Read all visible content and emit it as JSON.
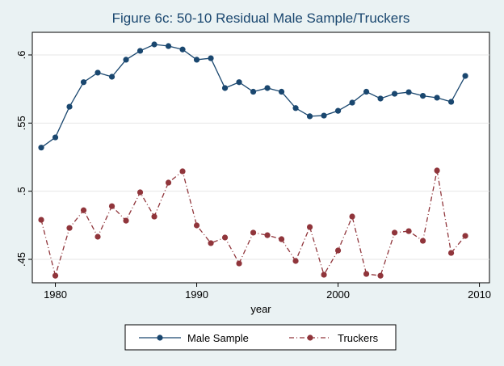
{
  "chart_data": {
    "type": "line",
    "title": "Figure 6c: 50-10 Residual Male Sample/Truckers",
    "x_label": "year",
    "x": [
      1979,
      1980,
      1981,
      1982,
      1983,
      1984,
      1985,
      1986,
      1987,
      1988,
      1989,
      1990,
      1991,
      1992,
      1993,
      1994,
      1995,
      1996,
      1997,
      1998,
      1999,
      2000,
      2001,
      2002,
      2003,
      2004,
      2005,
      2006,
      2007,
      2008,
      2009
    ],
    "series": [
      {
        "name": "Male Sample",
        "color": "#1a476f",
        "dash": "solid",
        "values": [
          0.532,
          0.5395,
          0.562,
          0.58,
          0.587,
          0.584,
          0.5965,
          0.603,
          0.6077,
          0.6065,
          0.604,
          0.5965,
          0.5976,
          0.5757,
          0.58,
          0.573,
          0.5757,
          0.573,
          0.561,
          0.555,
          0.5555,
          0.559,
          0.565,
          0.573,
          0.568,
          0.5715,
          0.5727,
          0.57,
          0.5686,
          0.5656,
          0.5846
        ]
      },
      {
        "name": "Truckers",
        "color": "#90353b",
        "dash": "dashdot",
        "values": [
          0.479,
          0.438,
          0.473,
          0.486,
          0.4666,
          0.489,
          0.4784,
          0.4992,
          0.4814,
          0.5063,
          0.5146,
          0.4749,
          0.4619,
          0.466,
          0.447,
          0.4696,
          0.4677,
          0.4648,
          0.4488,
          0.4737,
          0.4387,
          0.4565,
          0.4814,
          0.4393,
          0.438,
          0.4696,
          0.4707,
          0.4636,
          0.5152,
          0.4547,
          0.4672
        ]
      }
    ],
    "xlim": [
      1978.37,
      2010.71
    ],
    "xticks": [
      1980,
      1990,
      2000,
      2010
    ],
    "ylim": [
      0.4328,
      0.6166
    ],
    "yticks": [
      {
        "value": 0.45,
        "label": ".45"
      },
      {
        "value": 0.5,
        "label": ".5"
      },
      {
        "value": 0.55,
        "label": ".55"
      },
      {
        "value": 0.6,
        "label": ".6"
      }
    ],
    "grid": true,
    "legend": "bottom"
  }
}
